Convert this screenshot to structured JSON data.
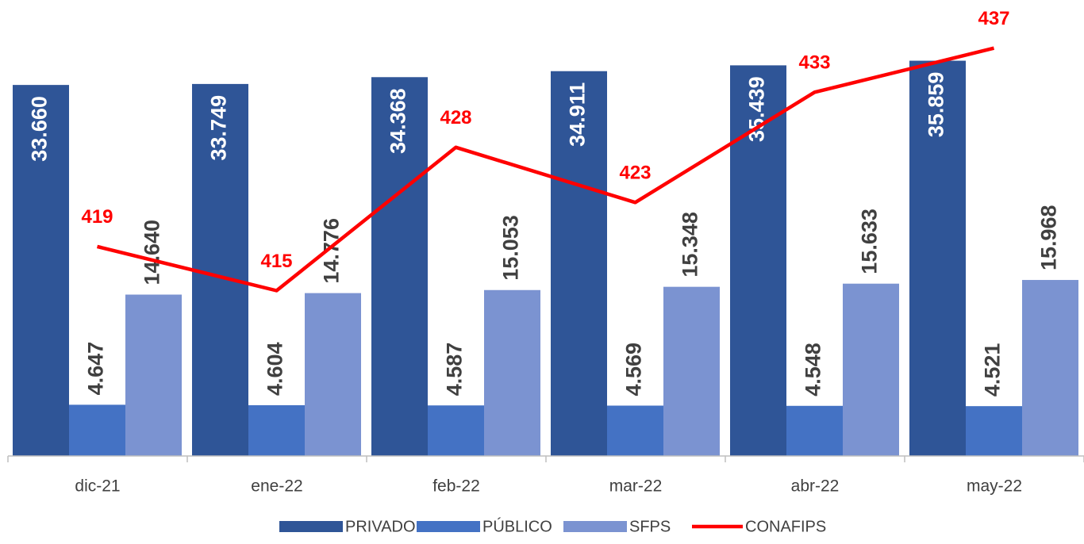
{
  "chart_data": {
    "type": "bar",
    "categories": [
      "dic-21",
      "ene-22",
      "feb-22",
      "mar-22",
      "abr-22",
      "may-22"
    ],
    "ylim": [
      0,
      40000
    ],
    "y2lim": [
      400,
      440
    ],
    "series": [
      {
        "name": "PRIVADO",
        "color": "#2f5597",
        "values": [
          33660,
          33749,
          34368,
          34911,
          35439,
          35859
        ],
        "value_labels": [
          "33.660",
          "33.749",
          "34.368",
          "34.911",
          "35.439",
          "35.859"
        ]
      },
      {
        "name": "PÚBLICO",
        "color": "#4472c4",
        "values": [
          4647,
          4604,
          4587,
          4569,
          4548,
          4521
        ],
        "value_labels": [
          "4.647",
          "4.604",
          "4.587",
          "4.569",
          "4.548",
          "4.521"
        ]
      },
      {
        "name": "SFPS",
        "color": "#7b93d1",
        "values": [
          14640,
          14776,
          15053,
          15348,
          15633,
          15968
        ],
        "value_labels": [
          "14.640",
          "14.776",
          "15.053",
          "15.348",
          "15.633",
          "15.968"
        ]
      },
      {
        "name": "CONAFIPS",
        "type": "line",
        "axis": "y2",
        "color": "#ff0000",
        "values": [
          419,
          415,
          428,
          423,
          433,
          437
        ]
      }
    ]
  }
}
